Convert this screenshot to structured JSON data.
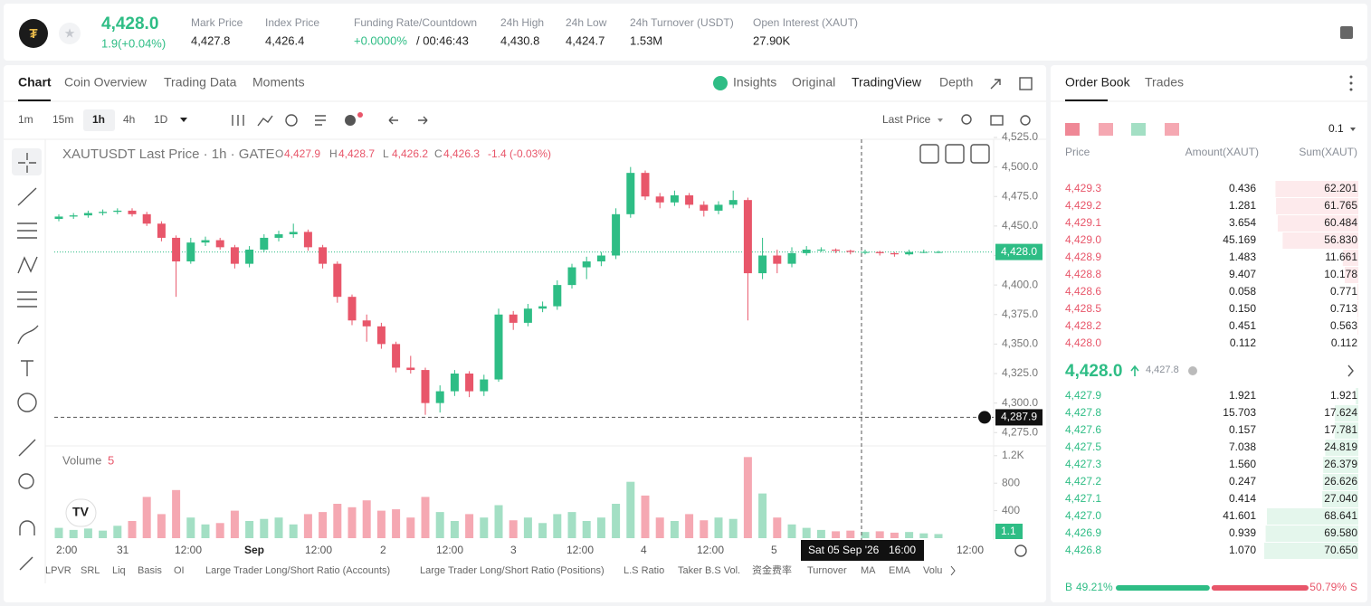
{
  "header": {
    "price": "4,428.0",
    "change": "1.9(+0.04%)",
    "stats": [
      {
        "label": "Mark Price",
        "value": "4,427.8"
      },
      {
        "label": "Index Price",
        "value": "4,426.4"
      },
      {
        "label": "Funding Rate/Countdown",
        "value": "+0.0000%",
        "extra": "/ 00:46:43"
      },
      {
        "label": "24h High",
        "value": "4,430.8"
      },
      {
        "label": "24h Low",
        "value": "4,424.7"
      },
      {
        "label": "24h Turnover (USDT)",
        "value": "1.53M"
      },
      {
        "label": "Open Interest (XAUT)",
        "value": "27.90K"
      }
    ]
  },
  "tabs": [
    "Chart",
    "Coin Overview",
    "Trading Data",
    "Moments"
  ],
  "views": [
    "Insights",
    "Original",
    "TradingView",
    "Depth"
  ],
  "intervals": [
    "1m",
    "15m",
    "1h",
    "4h",
    "1D"
  ],
  "price_type": "Last Price",
  "legend": {
    "symbol": "XAUTUSDT Last Price · 1h · GATE",
    "ohlc_keys": [
      "O",
      "H",
      "L",
      "C"
    ],
    "ohlc": [
      "4,427.9",
      "4,428.7",
      "4,426.2",
      "4,426.3"
    ],
    "change": "-1.4 (-0.03%)"
  },
  "chart_data": {
    "type": "candlestick",
    "candles": [
      [
        4456,
        4460,
        4454,
        4458
      ],
      [
        4458,
        4461,
        4456,
        4459
      ],
      [
        4459,
        4463,
        4457,
        4461
      ],
      [
        4461,
        4464,
        4459,
        4462
      ],
      [
        4462,
        4465,
        4460,
        4463
      ],
      [
        4463,
        4465,
        4458,
        4460
      ],
      [
        4460,
        4462,
        4450,
        4452
      ],
      [
        4452,
        4454,
        4437,
        4440
      ],
      [
        4440,
        4442,
        4390,
        4420
      ],
      [
        4420,
        4440,
        4418,
        4436
      ],
      [
        4436,
        4441,
        4433,
        4438
      ],
      [
        4438,
        4440,
        4430,
        4432
      ],
      [
        4432,
        4434,
        4414,
        4418
      ],
      [
        4418,
        4433,
        4415,
        4430
      ],
      [
        4430,
        4443,
        4428,
        4440
      ],
      [
        4440,
        4446,
        4437,
        4443
      ],
      [
        4443,
        4452,
        4440,
        4445
      ],
      [
        4445,
        4447,
        4429,
        4432
      ],
      [
        4432,
        4434,
        4414,
        4418
      ],
      [
        4418,
        4420,
        4385,
        4390
      ],
      [
        4390,
        4392,
        4366,
        4370
      ],
      [
        4370,
        4375,
        4352,
        4365
      ],
      [
        4365,
        4368,
        4346,
        4350
      ],
      [
        4350,
        4352,
        4326,
        4330
      ],
      [
        4330,
        4340,
        4325,
        4328
      ],
      [
        4328,
        4330,
        4290,
        4300
      ],
      [
        4300,
        4315,
        4292,
        4310
      ],
      [
        4310,
        4328,
        4306,
        4325
      ],
      [
        4325,
        4327,
        4305,
        4310
      ],
      [
        4310,
        4324,
        4306,
        4320
      ],
      [
        4320,
        4380,
        4318,
        4375
      ],
      [
        4375,
        4378,
        4362,
        4368
      ],
      [
        4368,
        4384,
        4365,
        4380
      ],
      [
        4380,
        4386,
        4377,
        4382
      ],
      [
        4382,
        4404,
        4379,
        4400
      ],
      [
        4400,
        4418,
        4397,
        4415
      ],
      [
        4415,
        4424,
        4405,
        4420
      ],
      [
        4420,
        4428,
        4416,
        4425
      ],
      [
        4425,
        4465,
        4422,
        4460
      ],
      [
        4460,
        4500,
        4457,
        4495
      ],
      [
        4495,
        4497,
        4472,
        4475
      ],
      [
        4475,
        4478,
        4465,
        4470
      ],
      [
        4470,
        4480,
        4467,
        4476
      ],
      [
        4476,
        4478,
        4465,
        4468
      ],
      [
        4468,
        4471,
        4458,
        4463
      ],
      [
        4463,
        4471,
        4460,
        4468
      ],
      [
        4468,
        4480,
        4465,
        4472
      ],
      [
        4472,
        4474,
        4370,
        4410
      ],
      [
        4410,
        4440,
        4405,
        4425
      ],
      [
        4425,
        4430,
        4410,
        4418
      ],
      [
        4418,
        4432,
        4415,
        4427
      ],
      [
        4427,
        4433,
        4425,
        4430
      ],
      [
        4430,
        4432,
        4428,
        4430
      ],
      [
        4430,
        4431,
        4427,
        4429
      ],
      [
        4429,
        4430,
        4426,
        4428
      ],
      [
        4428,
        4430,
        4426,
        4428
      ],
      [
        4428,
        4429,
        4425,
        4427
      ],
      [
        4427,
        4428,
        4424,
        4426
      ],
      [
        4426,
        4430,
        4425,
        4428
      ],
      [
        4428,
        4430,
        4427,
        4428
      ],
      [
        4428,
        4429,
        4427,
        4428
      ]
    ],
    "volumes": [
      150,
      120,
      140,
      110,
      180,
      250,
      600,
      350,
      700,
      300,
      200,
      220,
      400,
      250,
      280,
      300,
      200,
      350,
      380,
      500,
      450,
      550,
      400,
      420,
      300,
      600,
      380,
      250,
      350,
      300,
      480,
      260,
      300,
      220,
      350,
      380,
      250,
      300,
      500,
      820,
      620,
      300,
      250,
      350,
      260,
      300,
      280,
      1180,
      650,
      300,
      200,
      150,
      120,
      100,
      110,
      90,
      100,
      80,
      90,
      70,
      60
    ],
    "up_color": "#2ebd85",
    "down_color": "#e8566a",
    "up_volume_color": "#a3dfc4",
    "down_volume_color": "#f5a8b2",
    "ylim": [
      4266,
      4525
    ],
    "yticks": [
      {
        "value": 4275,
        "label": "4,275.0"
      },
      {
        "value": 4300,
        "label": "4,300.0"
      },
      {
        "value": 4325,
        "label": "4,325.0"
      },
      {
        "value": 4350,
        "label": "4,350.0"
      },
      {
        "value": 4375,
        "label": "4,375.0"
      },
      {
        "value": 4400,
        "label": "4,400.0"
      },
      {
        "value": 4425,
        "label": "4,425.0"
      },
      {
        "value": 4450,
        "label": "4,450.0"
      },
      {
        "value": 4475,
        "label": "4,475.0"
      },
      {
        "value": 4500,
        "label": "4,500.0"
      },
      {
        "value": 4525,
        "label": "4,525.0"
      }
    ],
    "last_price": {
      "value": 4428.0,
      "label": "4,428.0"
    },
    "crosshair_price": {
      "value": 4287.9,
      "label": "4,287.9"
    },
    "crosshair_time": "Sat 05 Sep '26",
    "crosshair_hour": "16:00",
    "x_labels": [
      "2:00",
      "31",
      "12:00",
      "Sep",
      "12:00",
      "2",
      "12:00",
      "3",
      "12:00",
      "4",
      "12:00",
      "5",
      "12:00"
    ],
    "volume_title": "Volume",
    "volume_period": "5",
    "volume_ylim": [
      0,
      1250
    ],
    "volume_ticks": [
      400,
      800,
      {
        "value": 1200,
        "label": "1.2K"
      }
    ],
    "volume_last": "1.1"
  },
  "indicators": [
    "LPVR",
    "SRL",
    "Liq",
    "Basis",
    "OI",
    "Large Trader Long/Short Ratio (Accounts)",
    "Large Trader Long/Short Ratio (Positions)",
    "L.S Ratio",
    "Taker B.S Vol.",
    "资金费率",
    "Turnover",
    "MA",
    "EMA",
    "Volu"
  ],
  "order_book": {
    "tabs": [
      "Order Book",
      "Trades"
    ],
    "precision": "0.1",
    "columns": [
      "Price",
      "Amount(XAUT)",
      "Sum(XAUT)"
    ],
    "asks": [
      [
        "4,429.3",
        "0.436",
        62.201
      ],
      [
        "4,429.2",
        "1.281",
        61.765
      ],
      [
        "4,429.1",
        "3.654",
        60.484
      ],
      [
        "4,429.0",
        "45.169",
        56.83
      ],
      [
        "4,428.9",
        "1.483",
        11.661
      ],
      [
        "4,428.8",
        "9.407",
        10.178
      ],
      [
        "4,428.6",
        "0.058",
        0.771
      ],
      [
        "4,428.5",
        "0.150",
        0.713
      ],
      [
        "4,428.2",
        "0.451",
        0.563
      ],
      [
        "4,428.0",
        "0.112",
        0.112
      ]
    ],
    "ask_sum_labels": [
      "62.201",
      "61.765",
      "60.484",
      "56.830",
      "11.661",
      "10.178",
      "0.771",
      "0.713",
      "0.563",
      "0.112"
    ],
    "mid_price": "4,428.0",
    "mark_price": "4,427.8",
    "bids": [
      [
        "4,427.9",
        "1.921",
        1.921
      ],
      [
        "4,427.8",
        "15.703",
        17.624
      ],
      [
        "4,427.6",
        "0.157",
        17.781
      ],
      [
        "4,427.5",
        "7.038",
        24.819
      ],
      [
        "4,427.3",
        "1.560",
        26.379
      ],
      [
        "4,427.2",
        "0.247",
        26.626
      ],
      [
        "4,427.1",
        "0.414",
        27.04
      ],
      [
        "4,427.0",
        "41.601",
        68.641
      ],
      [
        "4,426.9",
        "0.939",
        69.58
      ],
      [
        "4,426.8",
        "1.070",
        70.65
      ]
    ],
    "bid_sum_labels": [
      "1.921",
      "17.624",
      "17.781",
      "24.819",
      "26.379",
      "26.626",
      "27.040",
      "68.641",
      "69.580",
      "70.650"
    ],
    "ratio": {
      "buy_letter": "B",
      "buy": 49.21,
      "buy_label": "49.21%",
      "sell": 50.79,
      "sell_label": "50.79%",
      "sell_letter": "S"
    }
  }
}
